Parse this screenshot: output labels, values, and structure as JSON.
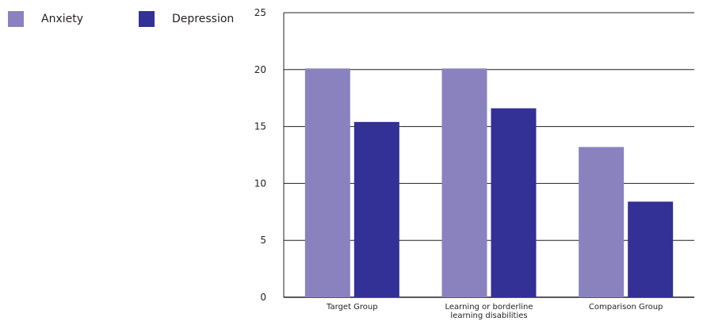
{
  "legend": [
    {
      "label": "Anxiety",
      "color": "#8a82bf"
    },
    {
      "label": "Depression",
      "color": "#333096"
    }
  ],
  "chart_data": {
    "type": "bar",
    "categories": [
      [
        "Target Group"
      ],
      [
        "Learning or borderline",
        "learning disabilities"
      ],
      [
        "Comparison Group"
      ]
    ],
    "series": [
      {
        "name": "Anxiety",
        "color": "#8a82bf",
        "values": [
          20.1,
          20.1,
          13.2
        ]
      },
      {
        "name": "Depression",
        "color": "#333096",
        "values": [
          15.4,
          16.6,
          8.4
        ]
      }
    ],
    "ylim": [
      0,
      25
    ],
    "yticks": [
      0,
      5,
      10,
      15,
      20,
      25
    ],
    "grid": true,
    "legend_position": "top-left"
  }
}
